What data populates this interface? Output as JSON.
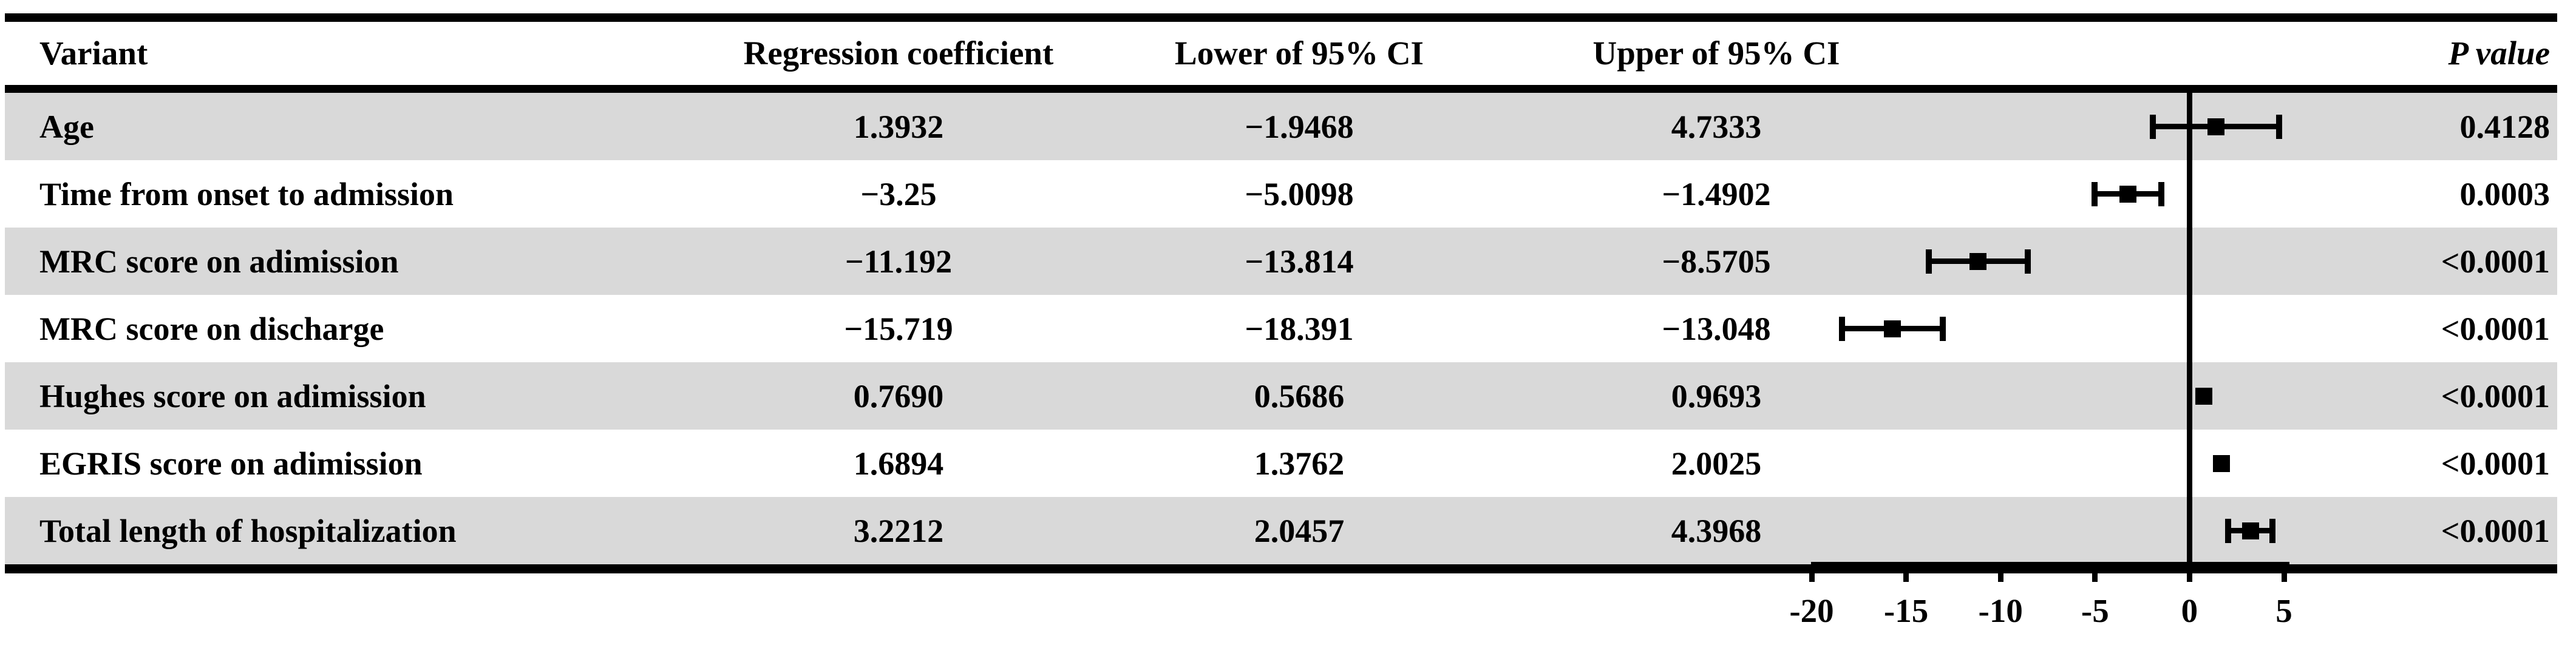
{
  "chart_data": {
    "type": "scatter",
    "subtype": "forest-plot",
    "title": "",
    "xlabel": "",
    "ylabel": "",
    "categories": [
      "Age",
      "Time from onset to admission",
      "MRC score on adimission",
      "MRC score on discharge",
      "Hughes score on adimission",
      "EGRIS score on adimission",
      "Total length of hospitalization"
    ],
    "series": [
      {
        "name": "Regression coefficient",
        "values": [
          1.3932,
          -3.25,
          -11.192,
          -15.719,
          0.769,
          1.6894,
          3.2212
        ]
      },
      {
        "name": "Lower of 95% CI",
        "values": [
          -1.9468,
          -5.0098,
          -13.814,
          -18.391,
          0.5686,
          1.3762,
          2.0457
        ]
      },
      {
        "name": "Upper of 95% CI",
        "values": [
          4.7333,
          -1.4902,
          -8.5705,
          -13.048,
          0.9693,
          2.0025,
          4.3968
        ]
      }
    ],
    "p_values": [
      "0.4128",
      "0.0003",
      "<0.0001",
      "<0.0001",
      "<0.0001",
      "<0.0001",
      "<0.0001"
    ],
    "xticks": [
      -20,
      -15,
      -10,
      -5,
      0,
      5
    ],
    "xlim": [
      -22.6,
      7.6
    ],
    "zero_reference_line": 0,
    "grid": false,
    "legend": false
  },
  "table": {
    "header": {
      "variant": "Variant",
      "coef": "Regression coefficient",
      "lower": "Lower of 95% CI",
      "upper": "Upper of 95% CI",
      "p": "P value"
    },
    "rows": [
      {
        "variant": "Age",
        "coef": "1.3932",
        "lower": "−1.9468",
        "upper": "4.7333",
        "p": "0.4128",
        "coef_v": 1.3932,
        "lower_v": -1.9468,
        "upper_v": 4.7333
      },
      {
        "variant": "Time from onset to admission",
        "coef": "−3.25",
        "lower": "−5.0098",
        "upper": "−1.4902",
        "p": "0.0003",
        "coef_v": -3.25,
        "lower_v": -5.0098,
        "upper_v": -1.4902
      },
      {
        "variant": "MRC score on adimission",
        "coef": "−11.192",
        "lower": "−13.814",
        "upper": "−8.5705",
        "p": "<0.0001",
        "coef_v": -11.192,
        "lower_v": -13.814,
        "upper_v": -8.5705
      },
      {
        "variant": "MRC score on discharge",
        "coef": "−15.719",
        "lower": "−18.391",
        "upper": "−13.048",
        "p": "<0.0001",
        "coef_v": -15.719,
        "lower_v": -18.391,
        "upper_v": -13.048
      },
      {
        "variant": "Hughes score on adimission",
        "coef": "0.7690",
        "lower": "0.5686",
        "upper": "0.9693",
        "p": "<0.0001",
        "coef_v": 0.769,
        "lower_v": 0.5686,
        "upper_v": 0.9693
      },
      {
        "variant": "EGRIS score on adimission",
        "coef": "1.6894",
        "lower": "1.3762",
        "upper": "2.0025",
        "p": "<0.0001",
        "coef_v": 1.6894,
        "lower_v": 1.3762,
        "upper_v": 2.0025
      },
      {
        "variant": "Total length of hospitalization",
        "coef": "3.2212",
        "lower": "2.0457",
        "upper": "4.3968",
        "p": "<0.0001",
        "coef_v": 3.2212,
        "lower_v": 2.0457,
        "upper_v": 4.3968
      }
    ]
  },
  "axis": {
    "tick_labels": [
      "-20",
      "-15",
      "-10",
      "-5",
      "0",
      "5"
    ],
    "tick_values": [
      -20,
      -15,
      -10,
      -5,
      0,
      5
    ]
  },
  "colors": {
    "stripe": "#d9d9d9",
    "ink": "#000000",
    "background": "#ffffff"
  }
}
